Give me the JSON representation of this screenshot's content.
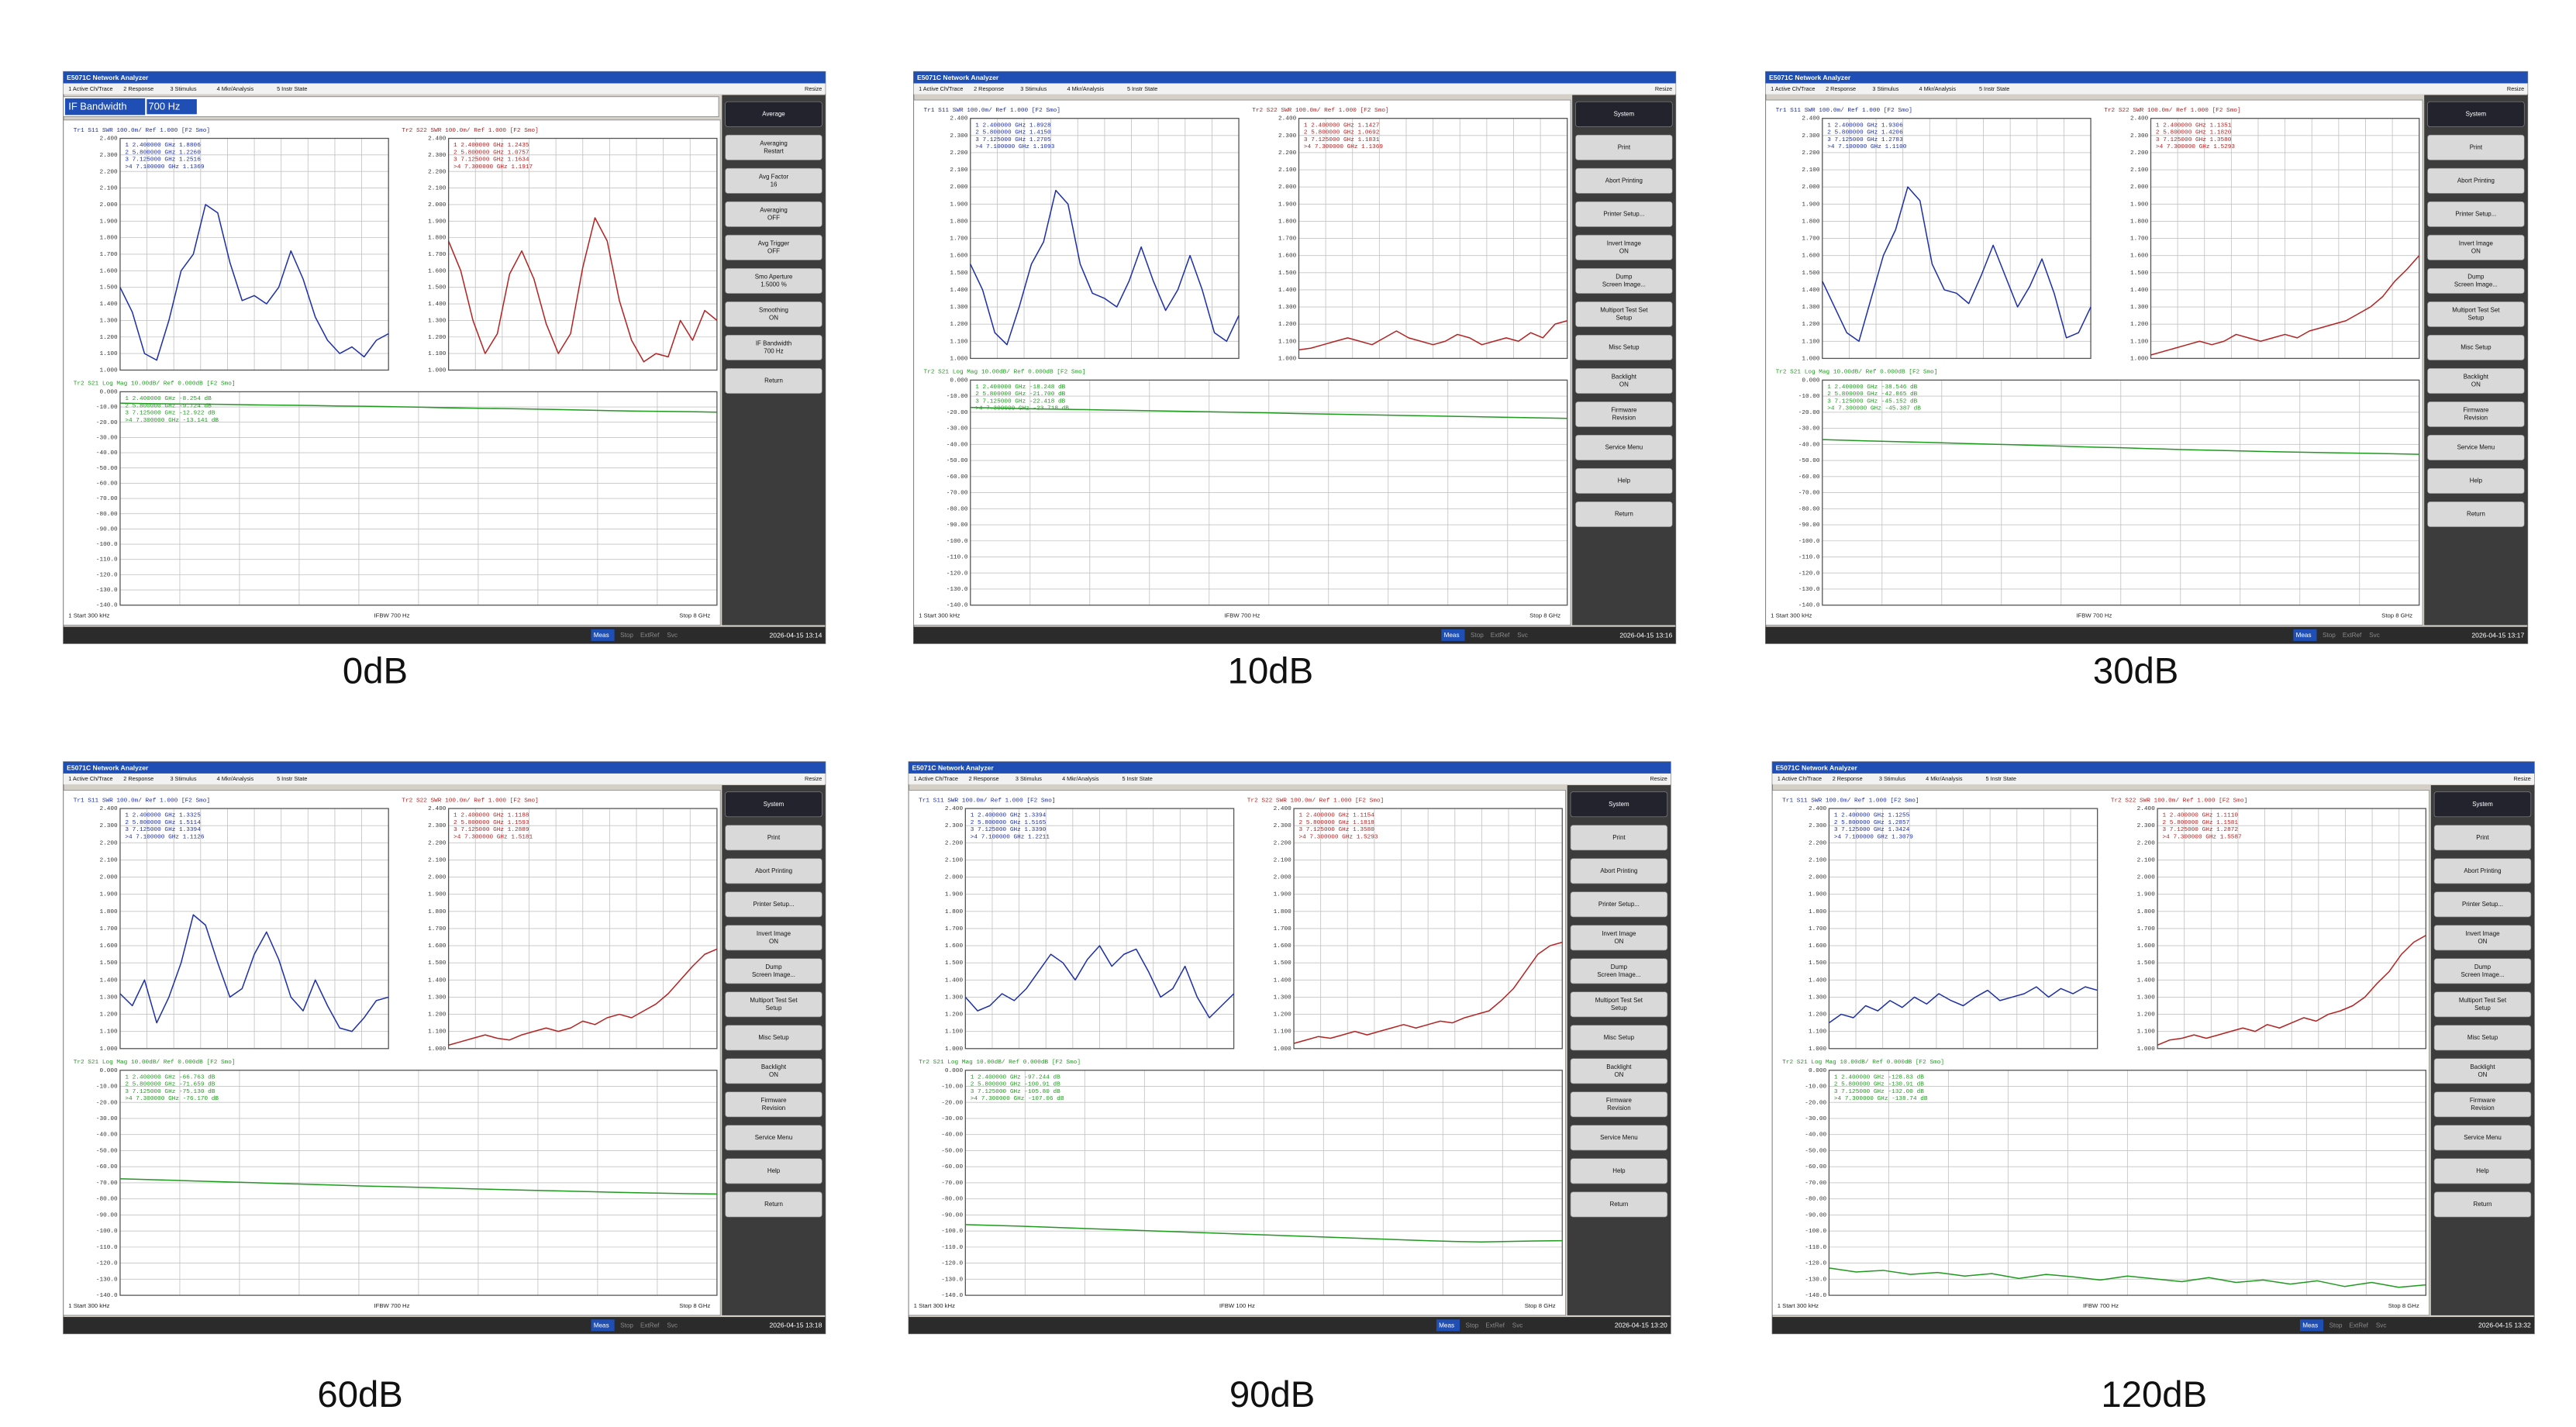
{
  "analyzer": {
    "title": "E5071C Network Analyzer",
    "menu": [
      "1 Active Ch/Trace",
      "2 Response",
      "3 Stimulus",
      "4 Mkr/Analysis",
      "5 Instr State"
    ],
    "resize": "Resize",
    "s11_header": "Tr1 S11 SWR 100.0m/ Ref 1.000 [F2 Smo]",
    "s22_header": "Tr2 S22 SWR 100.0m/ Ref 1.000 [F2 Smo]",
    "s21_header": "Tr2 S21 Log Mag 10.00dB/ Ref 0.000dB [F2 Smo]",
    "footer_start": "1 Start 300 kHz",
    "footer_stop": "Stop 8 GHz",
    "status": [
      "Meas",
      "Stop",
      "ExtRef",
      "Svc"
    ],
    "xlim": [
      0.3,
      8.0
    ],
    "x": [
      0.3,
      0.65,
      1.0,
      1.35,
      1.7,
      2.05,
      2.4,
      2.75,
      3.1,
      3.45,
      3.8,
      4.15,
      4.5,
      4.85,
      5.2,
      5.55,
      5.9,
      6.25,
      6.6,
      6.95,
      7.3,
      7.65,
      8.0
    ],
    "swr_ylim": [
      1.0,
      2.4
    ],
    "swr_yticks": [
      {
        "value": 1.0,
        "label": "1.000"
      },
      {
        "value": 1.1,
        "label": "1.100"
      },
      {
        "value": 1.2,
        "label": "1.200"
      },
      {
        "value": 1.3,
        "label": "1.300"
      },
      {
        "value": 1.4,
        "label": "1.400"
      },
      {
        "value": 1.5,
        "label": "1.500"
      },
      {
        "value": 1.6,
        "label": "1.600"
      },
      {
        "value": 1.7,
        "label": "1.700"
      },
      {
        "value": 1.8,
        "label": "1.800"
      },
      {
        "value": 1.9,
        "label": "1.900"
      },
      {
        "value": 2.0,
        "label": "2.000"
      },
      {
        "value": 2.1,
        "label": "2.100"
      },
      {
        "value": 2.2,
        "label": "2.200"
      },
      {
        "value": 2.3,
        "label": "2.300"
      },
      {
        "value": 2.4,
        "label": "2.400"
      }
    ],
    "db_ylim": [
      -140,
      0
    ],
    "db_yticks": [
      {
        "value": 0,
        "label": "0.000"
      },
      {
        "value": -10,
        "label": "-10.00"
      },
      {
        "value": -20,
        "label": "-20.00"
      },
      {
        "value": -30,
        "label": "-30.00"
      },
      {
        "value": -40,
        "label": "-40.00"
      },
      {
        "value": -50,
        "label": "-50.00"
      },
      {
        "value": -60,
        "label": "-60.00"
      },
      {
        "value": -70,
        "label": "-70.00"
      },
      {
        "value": -80,
        "label": "-80.00"
      },
      {
        "value": -90,
        "label": "-90.00"
      },
      {
        "value": -100,
        "label": "-100.0"
      },
      {
        "value": -110,
        "label": "-110.0"
      },
      {
        "value": -120,
        "label": "-120.0"
      },
      {
        "value": -130,
        "label": "-130.0"
      },
      {
        "value": -140,
        "label": "-140.0"
      }
    ],
    "colors": {
      "s11": "#1c2fa8",
      "s22": "#b52222",
      "s21": "#1f9a1f"
    }
  },
  "panels": [
    {
      "caption": "0dB",
      "timestamp": "2026-04-15 13:14",
      "ifbw": "IFBW 700 Hz",
      "entry": {
        "label": "IF Bandwidth",
        "value": "700 Hz"
      },
      "softkeys": [
        [
          "Average"
        ],
        [
          "Averaging",
          "Restart"
        ],
        [
          "Avg Factor",
          "16"
        ],
        [
          "Averaging",
          "OFF"
        ],
        [
          "Avg Trigger",
          "OFF"
        ],
        [
          "Smo Aperture",
          "1.5000 %"
        ],
        [
          "Smoothing",
          "ON"
        ],
        [
          "IF Bandwidth",
          "700 Hz"
        ],
        [
          "Return"
        ]
      ],
      "s11": {
        "values": [
          1.5,
          1.35,
          1.1,
          1.06,
          1.3,
          1.6,
          1.7,
          2.0,
          1.95,
          1.65,
          1.42,
          1.45,
          1.4,
          1.5,
          1.72,
          1.55,
          1.32,
          1.18,
          1.1,
          1.14,
          1.08,
          1.18,
          1.22
        ],
        "markers": [
          "1  2.400000 GHz  1.8806",
          "2  5.800000 GHz  1.2260",
          "3  7.125000 GHz  1.2516",
          ">4  7.100000 GHz  1.1369"
        ]
      },
      "s22": {
        "values": [
          1.78,
          1.6,
          1.3,
          1.1,
          1.22,
          1.58,
          1.72,
          1.55,
          1.28,
          1.1,
          1.22,
          1.62,
          1.92,
          1.78,
          1.42,
          1.18,
          1.05,
          1.1,
          1.08,
          1.3,
          1.18,
          1.36,
          1.3
        ],
        "markers": [
          "1  2.400000 GHz  1.2435",
          "2  5.800000 GHz  1.0757",
          "3  7.125000 GHz  1.1634",
          ">4  7.300000 GHz  1.1917"
        ]
      },
      "s21": {
        "values": [
          -7.5,
          -7.8,
          -8.0,
          -8.1,
          -8.3,
          -8.6,
          -8.8,
          -9.0,
          -9.3,
          -9.5,
          -9.8,
          -10.1,
          -10.5,
          -10.8,
          -11.0,
          -11.3,
          -11.6,
          -12.0,
          -12.4,
          -12.7,
          -12.9,
          -13.1,
          -13.4
        ],
        "markers": [
          "1  2.400000 GHz  -8.254 dB",
          "2  5.800000 GHz  -9.724 dB",
          "3  7.125000 GHz  -12.922 dB",
          ">4  7.300000 GHz  -13.141 dB"
        ]
      }
    },
    {
      "caption": "10dB",
      "timestamp": "2026-04-15 13:16",
      "ifbw": "IFBW 700 Hz",
      "softkeys": [
        [
          "System"
        ],
        [
          "Print"
        ],
        [
          "Abort Printing"
        ],
        [
          "Printer Setup..."
        ],
        [
          "Invert Image",
          "ON"
        ],
        [
          "Dump",
          "Screen Image..."
        ],
        [
          "Multiport Test Set",
          "Setup"
        ],
        [
          "Misc Setup"
        ],
        [
          "Backlight",
          "ON"
        ],
        [
          "Firmware",
          "Revision"
        ],
        [
          "Service Menu"
        ],
        [
          "Help"
        ],
        [
          "Return"
        ]
      ],
      "s11": {
        "values": [
          1.55,
          1.4,
          1.15,
          1.08,
          1.3,
          1.55,
          1.68,
          1.98,
          1.9,
          1.55,
          1.38,
          1.35,
          1.3,
          1.45,
          1.65,
          1.45,
          1.28,
          1.4,
          1.6,
          1.4,
          1.15,
          1.1,
          1.25
        ],
        "markers": [
          "1  2.400000 GHz  1.8928",
          "2  5.800000 GHz  1.4150",
          "3  7.125000 GHz  1.2705",
          ">4  7.100000 GHz  1.1093"
        ]
      },
      "s22": {
        "values": [
          1.05,
          1.06,
          1.08,
          1.1,
          1.12,
          1.1,
          1.08,
          1.12,
          1.16,
          1.12,
          1.1,
          1.08,
          1.1,
          1.14,
          1.12,
          1.08,
          1.1,
          1.12,
          1.1,
          1.15,
          1.12,
          1.2,
          1.22
        ],
        "markers": [
          "1  2.400000 GHz  1.1427",
          "2  5.800000 GHz  1.0692",
          "3  7.125000 GHz  1.1831",
          ">4  7.300000 GHz  1.1369"
        ]
      },
      "s21": {
        "values": [
          -17.0,
          -17.4,
          -17.8,
          -18.0,
          -18.3,
          -18.6,
          -18.9,
          -19.2,
          -19.5,
          -19.8,
          -20.1,
          -20.4,
          -20.8,
          -21.1,
          -21.4,
          -21.7,
          -22.0,
          -22.3,
          -22.6,
          -22.9,
          -23.2,
          -23.5,
          -23.8
        ],
        "markers": [
          "1  2.400000 GHz  -18.248 dB",
          "2  5.800000 GHz  -21.700 dB",
          "3  7.125000 GHz  -22.418 dB",
          ">4  7.300000 GHz  -23.718 dB"
        ]
      }
    },
    {
      "caption": "30dB",
      "timestamp": "2026-04-15 13:17",
      "ifbw": "IFBW 700 Hz",
      "softkeys": [
        [
          "System"
        ],
        [
          "Print"
        ],
        [
          "Abort Printing"
        ],
        [
          "Printer Setup..."
        ],
        [
          "Invert Image",
          "ON"
        ],
        [
          "Dump",
          "Screen Image..."
        ],
        [
          "Multiport Test Set",
          "Setup"
        ],
        [
          "Misc Setup"
        ],
        [
          "Backlight",
          "ON"
        ],
        [
          "Firmware",
          "Revision"
        ],
        [
          "Service Menu"
        ],
        [
          "Help"
        ],
        [
          "Return"
        ]
      ],
      "s11": {
        "values": [
          1.45,
          1.3,
          1.15,
          1.1,
          1.35,
          1.6,
          1.75,
          2.0,
          1.92,
          1.55,
          1.4,
          1.38,
          1.32,
          1.48,
          1.66,
          1.48,
          1.3,
          1.42,
          1.58,
          1.38,
          1.12,
          1.15,
          1.3
        ],
        "markers": [
          "1  2.400000 GHz  1.9306",
          "2  5.800000 GHz  1.4206",
          "3  7.125000 GHz  1.2783",
          ">4  7.100000 GHz  1.1100"
        ]
      },
      "s22": {
        "values": [
          1.02,
          1.04,
          1.06,
          1.08,
          1.1,
          1.08,
          1.1,
          1.14,
          1.12,
          1.1,
          1.12,
          1.14,
          1.12,
          1.16,
          1.18,
          1.2,
          1.22,
          1.26,
          1.3,
          1.36,
          1.45,
          1.52,
          1.6
        ],
        "markers": [
          "1  2.400000 GHz  1.1351",
          "2  5.800000 GHz  1.1820",
          "3  7.125000 GHz  1.3580",
          ">4  7.300000 GHz  1.5293"
        ]
      },
      "s21": {
        "values": [
          -37.0,
          -37.5,
          -38.0,
          -38.4,
          -38.8,
          -39.3,
          -39.8,
          -40.2,
          -40.7,
          -41.2,
          -41.7,
          -42.1,
          -42.6,
          -43.1,
          -43.5,
          -43.9,
          -44.3,
          -44.7,
          -45.0,
          -45.3,
          -45.5,
          -45.8,
          -46.2
        ],
        "markers": [
          "1  2.400000 GHz  -38.546 dB",
          "2  5.800000 GHz  -42.865 dB",
          "3  7.125000 GHz  -45.152 dB",
          ">4  7.300000 GHz  -45.387 dB"
        ]
      }
    },
    {
      "caption": "60dB",
      "timestamp": "2026-04-15 13:18",
      "ifbw": "IFBW 700 Hz",
      "softkeys": [
        [
          "System"
        ],
        [
          "Print"
        ],
        [
          "Abort Printing"
        ],
        [
          "Printer Setup..."
        ],
        [
          "Invert Image",
          "ON"
        ],
        [
          "Dump",
          "Screen Image..."
        ],
        [
          "Multiport Test Set",
          "Setup"
        ],
        [
          "Misc Setup"
        ],
        [
          "Backlight",
          "ON"
        ],
        [
          "Firmware",
          "Revision"
        ],
        [
          "Service Menu"
        ],
        [
          "Help"
        ],
        [
          "Return"
        ]
      ],
      "s11": {
        "values": [
          1.32,
          1.25,
          1.4,
          1.15,
          1.3,
          1.5,
          1.78,
          1.72,
          1.5,
          1.3,
          1.35,
          1.55,
          1.68,
          1.52,
          1.3,
          1.22,
          1.4,
          1.25,
          1.12,
          1.1,
          1.18,
          1.28,
          1.3
        ],
        "markers": [
          "1  2.400000 GHz  1.3325",
          "2  5.800000 GHz  1.5114",
          "3  7.125000 GHz  1.3394",
          ">4  7.100000 GHz  1.1126"
        ]
      },
      "s22": {
        "values": [
          1.02,
          1.04,
          1.06,
          1.08,
          1.06,
          1.05,
          1.08,
          1.1,
          1.12,
          1.1,
          1.12,
          1.16,
          1.14,
          1.18,
          1.2,
          1.18,
          1.22,
          1.26,
          1.32,
          1.4,
          1.48,
          1.55,
          1.58
        ],
        "markers": [
          "1  2.400000 GHz  1.1188",
          "2  5.800000 GHz  1.1593",
          "3  7.125000 GHz  1.2889",
          ">4  7.300000 GHz  1.5181"
        ]
      },
      "s21": {
        "values": [
          -67.5,
          -68.0,
          -68.5,
          -69.0,
          -69.5,
          -70.0,
          -70.5,
          -71.0,
          -71.5,
          -72.0,
          -72.4,
          -72.8,
          -73.3,
          -73.8,
          -74.2,
          -74.6,
          -75.0,
          -75.4,
          -75.8,
          -76.2,
          -76.5,
          -76.8,
          -77.0
        ],
        "markers": [
          "1  2.400000 GHz  -66.763 dB",
          "2  5.800000 GHz  -71.659 dB",
          "3  7.125000 GHz  -75.130 dB",
          ">4  7.300000 GHz  -76.170 dB"
        ]
      }
    },
    {
      "caption": "90dB",
      "timestamp": "2026-04-15 13:20",
      "ifbw": "IFBW 100 Hz",
      "softkeys": [
        [
          "System"
        ],
        [
          "Print"
        ],
        [
          "Abort Printing"
        ],
        [
          "Printer Setup..."
        ],
        [
          "Invert Image",
          "ON"
        ],
        [
          "Dump",
          "Screen Image..."
        ],
        [
          "Multiport Test Set",
          "Setup"
        ],
        [
          "Misc Setup"
        ],
        [
          "Backlight",
          "ON"
        ],
        [
          "Firmware",
          "Revision"
        ],
        [
          "Service Menu"
        ],
        [
          "Help"
        ],
        [
          "Return"
        ]
      ],
      "s11": {
        "values": [
          1.3,
          1.22,
          1.25,
          1.32,
          1.28,
          1.35,
          1.45,
          1.55,
          1.5,
          1.4,
          1.52,
          1.6,
          1.48,
          1.55,
          1.58,
          1.45,
          1.3,
          1.35,
          1.48,
          1.3,
          1.18,
          1.25,
          1.32
        ],
        "markers": [
          "1  2.400000 GHz  1.3394",
          "2  5.800000 GHz  1.5165",
          "3  7.125000 GHz  1.3390",
          ">4  7.100000 GHz  1.2211"
        ]
      },
      "s22": {
        "values": [
          1.03,
          1.05,
          1.07,
          1.06,
          1.08,
          1.1,
          1.08,
          1.1,
          1.12,
          1.14,
          1.12,
          1.14,
          1.16,
          1.15,
          1.18,
          1.2,
          1.22,
          1.28,
          1.35,
          1.45,
          1.55,
          1.6,
          1.62
        ],
        "markers": [
          "1  2.400000 GHz  1.1154",
          "2  5.800000 GHz  1.1818",
          "3  7.125000 GHz  1.3580",
          ">4  7.300000 GHz  1.5293"
        ]
      },
      "s21": {
        "values": [
          -96.0,
          -96.5,
          -97.0,
          -97.6,
          -98.2,
          -98.8,
          -99.4,
          -100.0,
          -100.6,
          -101.2,
          -101.8,
          -102.4,
          -103.0,
          -103.6,
          -104.2,
          -104.8,
          -105.4,
          -106.0,
          -106.5,
          -106.8,
          -106.5,
          -106.2,
          -106.0
        ],
        "markers": [
          "1  2.400000 GHz  -97.244 dB",
          "2  5.800000 GHz  -100.91 dB",
          "3  7.125000 GHz  -105.80 dB",
          ">4  7.300000 GHz  -107.06 dB"
        ]
      }
    },
    {
      "caption": "120dB",
      "timestamp": "2026-04-15 13:32",
      "ifbw": "IFBW 700 Hz",
      "softkeys": [
        [
          "System"
        ],
        [
          "Print"
        ],
        [
          "Abort Printing"
        ],
        [
          "Printer Setup..."
        ],
        [
          "Invert Image",
          "ON"
        ],
        [
          "Dump",
          "Screen Image..."
        ],
        [
          "Multiport Test Set",
          "Setup"
        ],
        [
          "Misc Setup"
        ],
        [
          "Backlight",
          "ON"
        ],
        [
          "Firmware",
          "Revision"
        ],
        [
          "Service Menu"
        ],
        [
          "Help"
        ],
        [
          "Return"
        ]
      ],
      "s11": {
        "values": [
          1.15,
          1.2,
          1.18,
          1.25,
          1.22,
          1.28,
          1.24,
          1.3,
          1.26,
          1.32,
          1.28,
          1.25,
          1.3,
          1.34,
          1.28,
          1.3,
          1.32,
          1.36,
          1.3,
          1.35,
          1.32,
          1.36,
          1.34
        ],
        "markers": [
          "1  2.400000 GHz  1.1255",
          "2  5.800000 GHz  1.2857",
          "3  7.125000 GHz  1.3424",
          ">4  7.100000 GHz  1.3079"
        ]
      },
      "s22": {
        "values": [
          1.02,
          1.05,
          1.06,
          1.08,
          1.06,
          1.08,
          1.1,
          1.12,
          1.1,
          1.14,
          1.12,
          1.15,
          1.18,
          1.16,
          1.2,
          1.22,
          1.25,
          1.3,
          1.38,
          1.45,
          1.55,
          1.62,
          1.66
        ],
        "markers": [
          "1  2.400000 GHz  1.1110",
          "2  5.800000 GHz  1.1581",
          "3  7.125000 GHz  1.2872",
          ">4  7.300000 GHz  1.5587"
        ]
      },
      "s21": {
        "values": [
          -123.0,
          -125.5,
          -124.5,
          -127.0,
          -125.8,
          -128.0,
          -126.5,
          -129.5,
          -127.0,
          -128.5,
          -130.5,
          -128.0,
          -129.8,
          -131.5,
          -129.0,
          -132.0,
          -130.5,
          -133.0,
          -131.0,
          -134.5,
          -132.0,
          -135.0,
          -133.5
        ],
        "markers": [
          "1  2.400000 GHz  -128.83 dB",
          "2  5.800000 GHz  -130.91 dB",
          "3  7.125000 GHz  -132.00 dB",
          ">4  7.300000 GHz  -138.74 dB"
        ]
      }
    }
  ]
}
